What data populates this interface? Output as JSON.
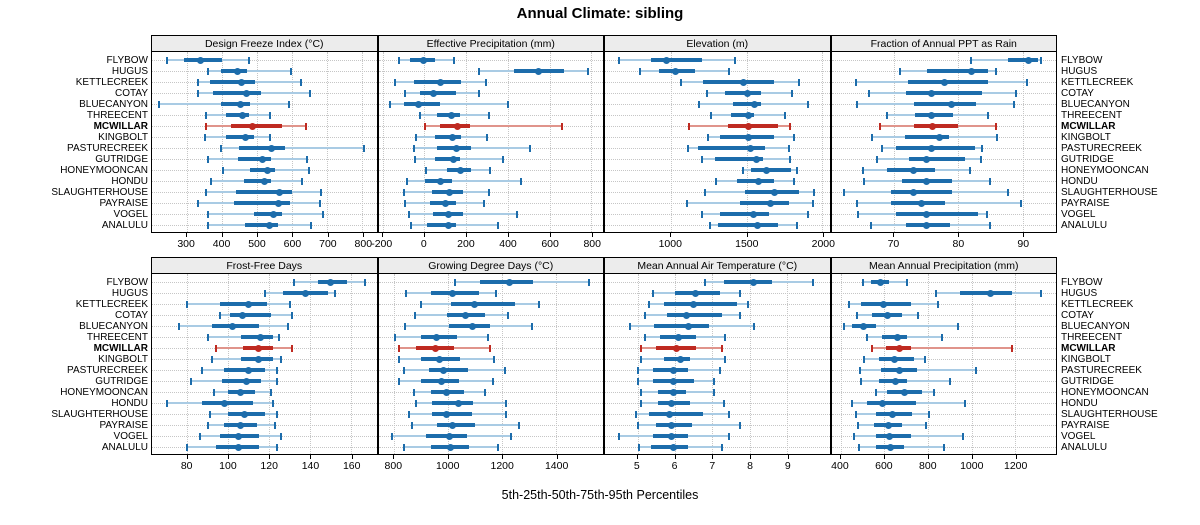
{
  "title": "Annual Climate: sibling",
  "caption": "5th-25th-50th-75th-95th Percentiles",
  "percentiles": [
    "5th",
    "25th",
    "50th",
    "75th",
    "95th"
  ],
  "stations": [
    "FLYBOW",
    "HUGUS",
    "KETTLECREEK",
    "COTAY",
    "BLUECANYON",
    "THREECENT",
    "MCWILLAR",
    "KINGBOLT",
    "PASTURECREEK",
    "GUTRIDGE",
    "HONEYMOONCAN",
    "HONDU",
    "SLAUGHTERHOUSE",
    "PAYRAISE",
    "VOGEL",
    "ANALULU"
  ],
  "highlight_station": "MCWILLAR",
  "colors": {
    "series": "#1c6cab",
    "series_light": "#a9cbe4",
    "highlight": "#bf2a21",
    "highlight_light": "#e0948b",
    "strip_bg": "#ececec",
    "grid": "#c6c6c6",
    "border": "#000000"
  },
  "chart_data": [
    {
      "type": "interval",
      "title": "Design Freeze Index (°C)",
      "xlim": [
        201,
        840
      ],
      "ticks": [
        300,
        400,
        500,
        600,
        700,
        800
      ],
      "values": [
        [
          243,
          292,
          340,
          401,
          476
        ],
        [
          361,
          398,
          443,
          472,
          597
        ],
        [
          333,
          365,
          455,
          495,
          624
        ],
        [
          333,
          374,
          470,
          510,
          651
        ],
        [
          222,
          396,
          452,
          481,
          590
        ],
        [
          354,
          413,
          460,
          478,
          538
        ],
        [
          356,
          427,
          488,
          571,
          639
        ],
        [
          352,
          412,
          468,
          490,
          538
        ],
        [
          396,
          448,
          540,
          580,
          805
        ],
        [
          361,
          446,
          515,
          540,
          641
        ],
        [
          403,
          479,
          530,
          552,
          648
        ],
        [
          368,
          462,
          520,
          540,
          629
        ],
        [
          354,
          440,
          565,
          600,
          681
        ],
        [
          333,
          433,
          560,
          595,
          679
        ],
        [
          361,
          490,
          548,
          572,
          688
        ],
        [
          361,
          467,
          535,
          560,
          654
        ]
      ]
    },
    {
      "type": "interval",
      "title": "Effective Precipitation (mm)",
      "xlim": [
        -220,
        856
      ],
      "ticks": [
        -200,
        0,
        200,
        400,
        600,
        800
      ],
      "values": [
        [
          -123,
          -68,
          -5,
          51,
          141
        ],
        [
          264,
          430,
          549,
          668,
          782
        ],
        [
          -139,
          -52,
          78,
          177,
          296
        ],
        [
          -95,
          -21,
          43,
          153,
          261
        ],
        [
          -163,
          -100,
          -28,
          74,
          399
        ],
        [
          -21,
          59,
          130,
          169,
          312
        ],
        [
          3,
          74,
          157,
          217,
          660
        ],
        [
          -40,
          51,
          134,
          177,
          299
        ],
        [
          -49,
          59,
          153,
          225,
          505
        ],
        [
          -44,
          51,
          138,
          169,
          375
        ],
        [
          6,
          106,
          174,
          225,
          316
        ],
        [
          -84,
          3,
          79,
          130,
          462
        ],
        [
          -100,
          35,
          122,
          185,
          312
        ],
        [
          -95,
          27,
          103,
          153,
          285
        ],
        [
          -76,
          43,
          114,
          185,
          443
        ],
        [
          -63,
          11,
          117,
          153,
          354
        ]
      ]
    },
    {
      "type": "interval",
      "title": "Elevation (m)",
      "xlim": [
        567,
        2047
      ],
      "ticks": [
        1000,
        1500,
        2000
      ],
      "values": [
        [
          656,
          867,
          970,
          1205,
          1423
        ],
        [
          797,
          922,
          1035,
          1161,
          1384
        ],
        [
          1070,
          1216,
          1477,
          1684,
          1848
        ],
        [
          1237,
          1357,
          1505,
          1597,
          1800
        ],
        [
          1187,
          1412,
          1553,
          1598,
          1902
        ],
        [
          1266,
          1397,
          1514,
          1549,
          1756
        ],
        [
          1118,
          1379,
          1516,
          1706,
          1789
        ],
        [
          1248,
          1325,
          1514,
          1684,
          1811
        ],
        [
          1113,
          1179,
          1527,
          1619,
          1782
        ],
        [
          1205,
          1292,
          1564,
          1608,
          1789
        ],
        [
          1477,
          1532,
          1634,
          1793,
          1830
        ],
        [
          1296,
          1434,
          1580,
          1684,
          1811
        ],
        [
          1227,
          1488,
          1684,
          1848,
          1946
        ],
        [
          1107,
          1455,
          1656,
          1782,
          1941
        ],
        [
          1205,
          1325,
          1549,
          1651,
          1902
        ],
        [
          1259,
          1314,
          1575,
          1706,
          1832
        ]
      ]
    },
    {
      "type": "interval",
      "title": "Fraction of Annual PPT as Rain",
      "xlim": [
        60.3,
        95.2
      ],
      "ticks": [
        70,
        80,
        90
      ],
      "values": [
        [
          82,
          87.7,
          91,
          92.4,
          92.9
        ],
        [
          71,
          75.1,
          82,
          84.7,
          85.8
        ],
        [
          64.1,
          72.2,
          77.9,
          84.7,
          90.7
        ],
        [
          66.1,
          71.9,
          75.9,
          83.7,
          89
        ],
        [
          64.2,
          73.1,
          78.9,
          82.7,
          88.6
        ],
        [
          69,
          73.3,
          75.9,
          79.2,
          84.7
        ],
        [
          67.9,
          73.1,
          76,
          80,
          85.9
        ],
        [
          66.6,
          71.8,
          77.1,
          78.5,
          86
        ],
        [
          68.2,
          70.3,
          75.9,
          82.6,
          83.7
        ],
        [
          67.3,
          72.4,
          75,
          81.1,
          83.6
        ],
        [
          65.2,
          69,
          73.1,
          76.4,
          81.8
        ],
        [
          65.4,
          71.3,
          75,
          79,
          85
        ],
        [
          62.3,
          69.5,
          73.1,
          79,
          87.8
        ],
        [
          64.2,
          69.6,
          74.3,
          77.9,
          89.7
        ],
        [
          64.4,
          70.3,
          75,
          83.1,
          84.5
        ],
        [
          66.4,
          71.9,
          75,
          78.7,
          85
        ]
      ]
    },
    {
      "type": "interval",
      "title": "Frost-Free Days",
      "xlim": [
        62.7,
        172.5
      ],
      "ticks": [
        80,
        100,
        120,
        140,
        160
      ],
      "values": [
        [
          132,
          144,
          150,
          158,
          167
        ],
        [
          118,
          127,
          138,
          149,
          152
        ],
        [
          80,
          96,
          110,
          119,
          130
        ],
        [
          96,
          101,
          107,
          121,
          131
        ],
        [
          76,
          92,
          102,
          115,
          129
        ],
        [
          90,
          106,
          116,
          122,
          125
        ],
        [
          94,
          107,
          115,
          122,
          131
        ],
        [
          92,
          106,
          115,
          122,
          126
        ],
        [
          87,
          98,
          110,
          118,
          124
        ],
        [
          82,
          97,
          109,
          116,
          124
        ],
        [
          93,
          100,
          106,
          113,
          121
        ],
        [
          70,
          87,
          98,
          112,
          122
        ],
        [
          91,
          100,
          108,
          118,
          124
        ],
        [
          90,
          98,
          106,
          114,
          123
        ],
        [
          86,
          96,
          105,
          115,
          126
        ],
        [
          80,
          94,
          105,
          115,
          124
        ]
      ]
    },
    {
      "type": "interval",
      "title": "Growing Degree Days (°C)",
      "xlim": [
        742,
        1574
      ],
      "ticks": [
        800,
        1000,
        1200,
        1400
      ],
      "values": [
        [
          1024,
          1119,
          1226,
          1315,
          1523
        ],
        [
          843,
          935,
          1017,
          1113,
          1176
        ],
        [
          898,
          1009,
          1098,
          1247,
          1335
        ],
        [
          878,
          996,
          1066,
          1137,
          1223
        ],
        [
          841,
          1002,
          1092,
          1155,
          1311
        ],
        [
          804,
          898,
          956,
          1033,
          1149
        ],
        [
          819,
          880,
          953,
          1021,
          1155
        ],
        [
          819,
          898,
          968,
          1045,
          1171
        ],
        [
          837,
          929,
          984,
          1073,
          1211
        ],
        [
          819,
          898,
          976,
          1039,
          1168
        ],
        [
          874,
          935,
          993,
          1058,
          1137
        ],
        [
          882,
          941,
          1039,
          1094,
          1213
        ],
        [
          856,
          939,
          994,
          1088,
          1213
        ],
        [
          868,
          960,
          1015,
          1100,
          1262
        ],
        [
          792,
          917,
          1005,
          1070,
          1233
        ],
        [
          837,
          935,
          1009,
          1076,
          1186
        ]
      ]
    },
    {
      "type": "interval",
      "title": "Mean Annual Air Temperature (°C)",
      "xlim": [
        4.13,
        10.13
      ],
      "ticks": [
        5,
        6,
        7,
        8,
        9
      ],
      "values": [
        [
          6.8,
          7.3,
          8.1,
          8.6,
          9.7
        ],
        [
          5.4,
          6.0,
          6.55,
          7.2,
          7.75
        ],
        [
          5.3,
          5.7,
          6.5,
          7.65,
          7.95
        ],
        [
          5.2,
          5.8,
          6.3,
          7.25,
          7.75
        ],
        [
          4.8,
          5.45,
          6.35,
          6.9,
          8.1
        ],
        [
          5.2,
          5.6,
          6.1,
          6.55,
          7.35
        ],
        [
          5.1,
          5.5,
          6.05,
          6.55,
          7.25
        ],
        [
          5.1,
          5.7,
          6.15,
          6.4,
          7.35
        ],
        [
          5.0,
          5.4,
          5.95,
          6.35,
          7.2
        ],
        [
          5.0,
          5.4,
          5.95,
          6.5,
          7.05
        ],
        [
          5.1,
          5.55,
          5.95,
          6.3,
          7.05
        ],
        [
          5.1,
          5.55,
          5.9,
          6.4,
          7.3
        ],
        [
          4.95,
          5.3,
          5.85,
          6.75,
          7.45
        ],
        [
          5.0,
          5.5,
          5.9,
          6.45,
          7.75
        ],
        [
          4.5,
          5.4,
          5.9,
          6.35,
          7.45
        ],
        [
          5.05,
          5.35,
          5.95,
          6.35,
          7.25
        ]
      ]
    },
    {
      "type": "interval",
      "title": "Mean Annual Precipitation (mm)",
      "xlim": [
        357,
        1388
      ],
      "ticks": [
        400,
        600,
        800,
        1000,
        1200
      ],
      "values": [
        [
          500,
          538,
          580,
          621,
          702
        ],
        [
          837,
          948,
          1088,
          1184,
          1318
        ],
        [
          436,
          492,
          598,
          720,
          846
        ],
        [
          472,
          545,
          614,
          682,
          755
        ],
        [
          416,
          451,
          504,
          560,
          938
        ],
        [
          522,
          591,
          659,
          705,
          865
        ],
        [
          542,
          606,
          667,
          720,
          1187
        ],
        [
          507,
          576,
          647,
          735,
          786
        ],
        [
          487,
          583,
          667,
          751,
          1020
        ],
        [
          492,
          576,
          649,
          705,
          903
        ],
        [
          560,
          614,
          693,
          773,
          827
        ],
        [
          451,
          522,
          591,
          743,
          968
        ],
        [
          469,
          560,
          637,
          728,
          807
        ],
        [
          477,
          553,
          618,
          682,
          792
        ],
        [
          462,
          560,
          624,
          720,
          959
        ],
        [
          481,
          560,
          629,
          690,
          872
        ]
      ]
    }
  ]
}
